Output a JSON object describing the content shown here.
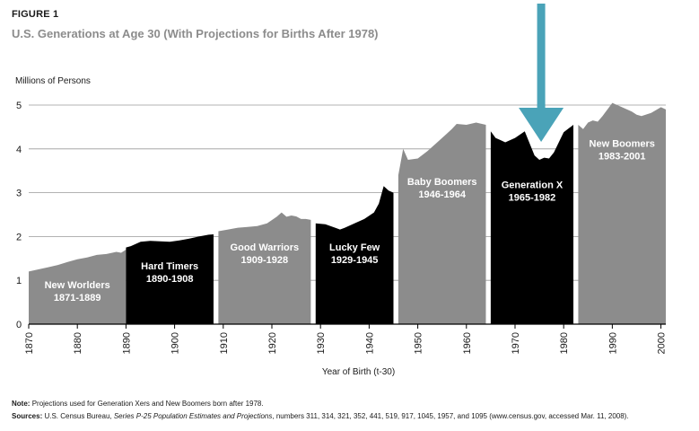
{
  "figure_label": "FIGURE 1",
  "note": {
    "label": "Note:",
    "text": "Projections used for Generation Xers and New Boomers born after 1978."
  },
  "sources": {
    "label": "Sources:",
    "text_before": "U.S. Census Bureau, ",
    "text_italic": "Series P-25 Population Estimates and Projections",
    "text_after": ", numbers 311, 314, 321, 352, 441, 519, 917, 1045, 1957, and 1095 (www.census.gov, accessed Mar. 11, 2008)."
  },
  "colors": {
    "gray": "#8c8c8c",
    "black": "#000000",
    "arrow": "#4aa3b8",
    "grid": "#9a9a9a",
    "axis": "#000000"
  },
  "chart_data": {
    "type": "area",
    "title": "U.S. Generations at Age 30 (With Projections for Births After 1978)",
    "xlabel": "Year of Birth (t-30)",
    "ylabel": "Millions of Persons",
    "xlim": [
      1870,
      2001
    ],
    "ylim": [
      0,
      5
    ],
    "y_ticks": [
      0,
      1,
      2,
      3,
      4,
      5
    ],
    "x_ticks": [
      1870,
      1880,
      1890,
      1900,
      1910,
      1920,
      1930,
      1940,
      1950,
      1960,
      1970,
      1980,
      1990,
      2000
    ],
    "grid": true,
    "annotation": "arrow pointing down at Generation X dip",
    "series": [
      {
        "name": "New Worlders",
        "years_label": "1871-1889",
        "color": "gray",
        "x": [
          1870,
          1872,
          1874,
          1876,
          1878,
          1880,
          1882,
          1884,
          1886,
          1888,
          1889,
          1890
        ],
        "values": [
          1.2,
          1.25,
          1.3,
          1.35,
          1.42,
          1.48,
          1.52,
          1.58,
          1.6,
          1.65,
          1.63,
          1.7
        ]
      },
      {
        "name": "Hard Timers",
        "years_label": "1890-1908",
        "color": "black",
        "x": [
          1890,
          1891,
          1893,
          1895,
          1897,
          1899,
          1901,
          1903,
          1905,
          1907,
          1908
        ],
        "values": [
          1.75,
          1.78,
          1.88,
          1.9,
          1.89,
          1.88,
          1.91,
          1.95,
          2.0,
          2.04,
          2.05
        ]
      },
      {
        "name": "Good Warriors",
        "years_label": "1909-1928",
        "color": "gray",
        "x": [
          1909,
          1911,
          1913,
          1915,
          1917,
          1919,
          1921,
          1922,
          1923,
          1924,
          1925,
          1926,
          1927,
          1928
        ],
        "values": [
          2.12,
          2.16,
          2.2,
          2.22,
          2.24,
          2.3,
          2.45,
          2.55,
          2.45,
          2.48,
          2.46,
          2.4,
          2.4,
          2.38
        ]
      },
      {
        "name": "Lucky Few",
        "years_label": "1929-1945",
        "color": "black",
        "x": [
          1929,
          1931,
          1933,
          1934,
          1935,
          1937,
          1939,
          1941,
          1942,
          1943,
          1944,
          1945
        ],
        "values": [
          2.3,
          2.28,
          2.2,
          2.16,
          2.2,
          2.3,
          2.4,
          2.55,
          2.75,
          3.15,
          3.05,
          3.0
        ]
      },
      {
        "name": "Baby Boomers",
        "years_label": "1946-1964",
        "color": "gray",
        "x": [
          1946,
          1947,
          1948,
          1950,
          1952,
          1954,
          1956,
          1957,
          1958,
          1960,
          1962,
          1964
        ],
        "values": [
          3.4,
          4.0,
          3.75,
          3.78,
          3.95,
          4.15,
          4.35,
          4.45,
          4.57,
          4.55,
          4.6,
          4.55
        ]
      },
      {
        "name": "Generation X",
        "years_label": "1965-1982",
        "color": "black",
        "x": [
          1965,
          1966,
          1967,
          1968,
          1970,
          1972,
          1974,
          1975,
          1976,
          1977,
          1978,
          1980,
          1982
        ],
        "values": [
          4.4,
          4.25,
          4.2,
          4.15,
          4.25,
          4.4,
          3.85,
          3.75,
          3.8,
          3.78,
          3.92,
          4.38,
          4.55
        ]
      },
      {
        "name": "New Boomers",
        "years_label": "1983-2001",
        "color": "gray",
        "x": [
          1983,
          1984,
          1985,
          1986,
          1987,
          1988,
          1990,
          1992,
          1994,
          1995,
          1996,
          1998,
          2000,
          2001
        ],
        "values": [
          4.55,
          4.45,
          4.6,
          4.65,
          4.62,
          4.75,
          5.05,
          4.95,
          4.85,
          4.78,
          4.75,
          4.82,
          4.95,
          4.9
        ]
      }
    ]
  }
}
